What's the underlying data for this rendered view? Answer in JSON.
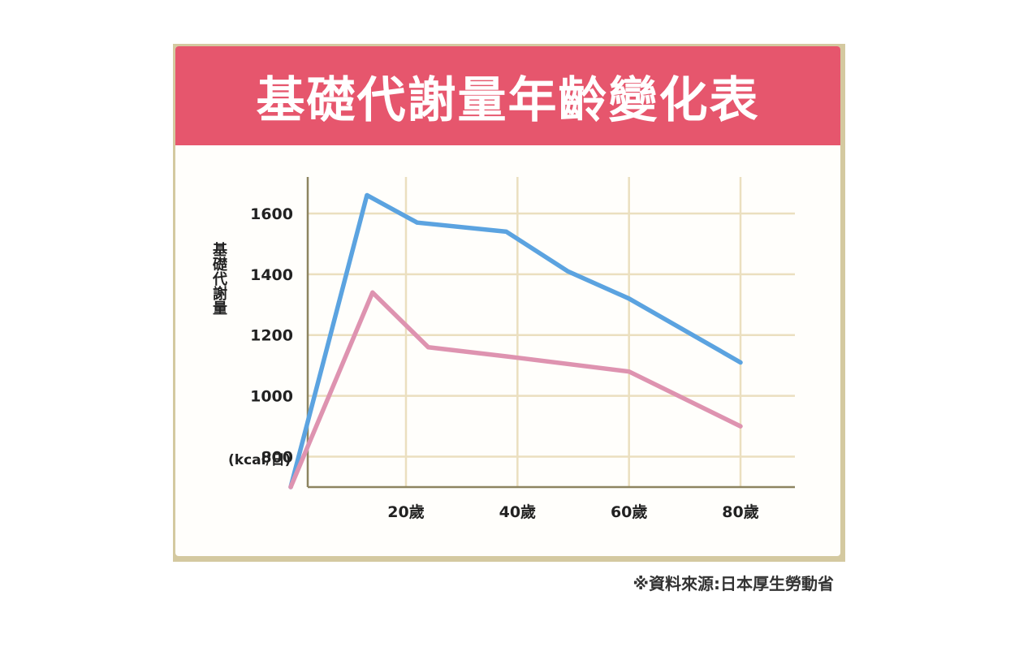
{
  "chart_data": {
    "type": "line",
    "title": "基礎代謝量年齡變化表",
    "ylabel": "基礎代謝量",
    "yunit": "(kcal/日)",
    "ylim": [
      700,
      1720
    ],
    "yticks": [
      800,
      1000,
      1200,
      1400,
      1600
    ],
    "xlim": [
      1,
      89
    ],
    "xticks": [
      20,
      40,
      60,
      80
    ],
    "xtick_labels": [
      "20歲",
      "40歲",
      "60歲",
      "80歲"
    ],
    "grid": true,
    "series": [
      {
        "color": "#5ba3e0",
        "points": [
          [
            0,
            700
          ],
          [
            13,
            1660
          ],
          [
            22,
            1570
          ],
          [
            38,
            1540
          ],
          [
            49,
            1410
          ],
          [
            60,
            1320
          ],
          [
            80,
            1110
          ]
        ]
      },
      {
        "color": "#de93b0",
        "points": [
          [
            0,
            700
          ],
          [
            14,
            1340
          ],
          [
            24,
            1160
          ],
          [
            38,
            1130
          ],
          [
            60,
            1080
          ],
          [
            80,
            900
          ]
        ]
      }
    ],
    "source": "※資料來源:日本厚生勞動省"
  },
  "colors": {
    "banner": "#e6566d",
    "grid": "#ebdfbf",
    "axis": "#8d8460",
    "frame": "#d4c9a0"
  }
}
